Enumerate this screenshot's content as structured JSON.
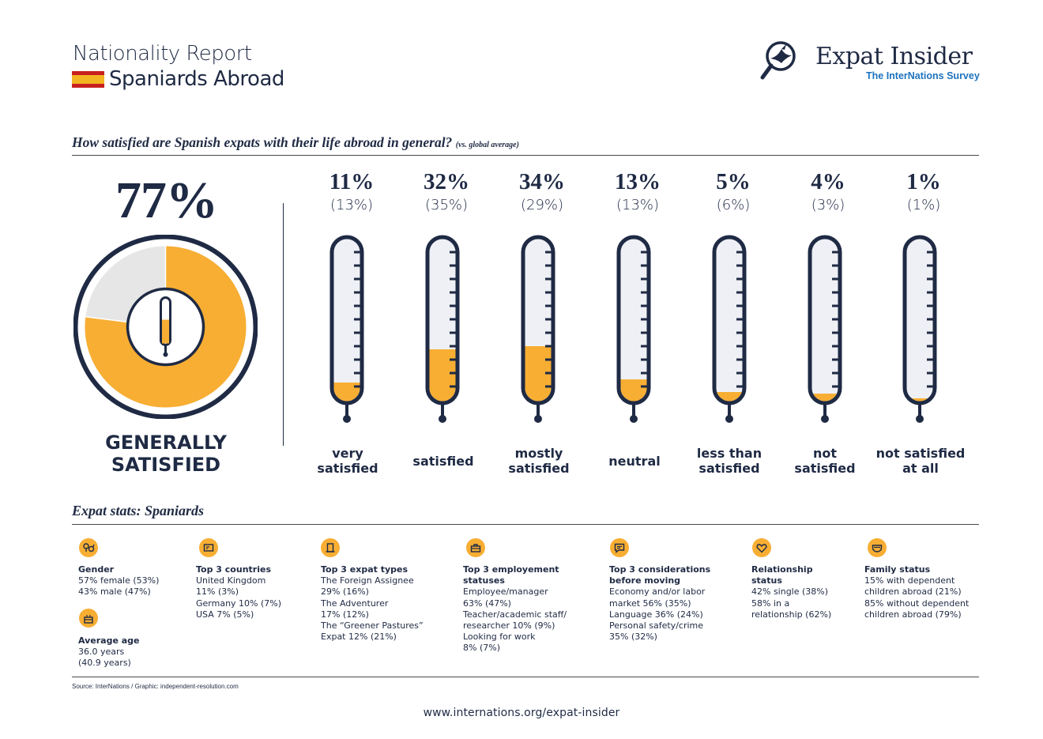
{
  "header": {
    "title": "Nationality Report",
    "subtitle": "Spaniards Abroad",
    "brand": {
      "name": "Expat Insider",
      "tagline": "The InterNations Survey"
    }
  },
  "colors": {
    "navy": "#1f2a44",
    "accent": "#f7ae33",
    "light": "#e6e6e6",
    "brand_blue": "#1e73be"
  },
  "question": {
    "text": "How satisfied are Spanish expats with their life abroad in general?",
    "note": "(vs. global average)"
  },
  "summary": {
    "value": "77%",
    "fraction": 0.77,
    "label_line1": "GENERALLY",
    "label_line2": "SATISFIED"
  },
  "chart_data": {
    "type": "bar",
    "categories": [
      "very satisfied",
      "satisfied",
      "mostly satisfied",
      "neutral",
      "less than satisfied",
      "not satisfied",
      "not satisfied at all"
    ],
    "series": [
      {
        "name": "Spaniards",
        "values": [
          11,
          32,
          34,
          13,
          5,
          4,
          1
        ]
      },
      {
        "name": "global average",
        "values": [
          13,
          35,
          29,
          13,
          6,
          3,
          1
        ]
      }
    ],
    "ylim": [
      0,
      100
    ]
  },
  "columns": [
    {
      "pct": "11%",
      "avg": "(13%)",
      "line1": "very",
      "line2": "satisfied"
    },
    {
      "pct": "32%",
      "avg": "(35%)",
      "line1": "satisfied",
      "line2": ""
    },
    {
      "pct": "34%",
      "avg": "(29%)",
      "line1": "mostly",
      "line2": "satisfied"
    },
    {
      "pct": "13%",
      "avg": "(13%)",
      "line1": "neutral",
      "line2": ""
    },
    {
      "pct": "5%",
      "avg": "(6%)",
      "line1": "less than",
      "line2": "satisfied"
    },
    {
      "pct": "4%",
      "avg": "(3%)",
      "line1": "not",
      "line2": "satisfied"
    },
    {
      "pct": "1%",
      "avg": "(1%)",
      "line1": "not satisfied",
      "line2": "at all"
    }
  ],
  "stats": {
    "title": "Expat stats: Spaniards",
    "gender": {
      "heading": "Gender",
      "lines": [
        "57% female (53%)",
        "43% male (47%)"
      ],
      "icon": "gender-icon"
    },
    "age": {
      "heading": "Average age",
      "lines": [
        "36.0 years",
        "(40.9 years)"
      ],
      "icon": "cake-icon"
    },
    "countries": {
      "heading": "Top 3 countries",
      "lines": [
        "United Kingdom",
        "11%  (3%)",
        "Germany 10% (7%)",
        "USA 7% (5%)"
      ],
      "icon": "map-icon"
    },
    "expat_types": {
      "heading": "Top 3 expat types",
      "lines": [
        "The Foreign Assignee",
        "29% (16%)",
        "The Adventurer",
        "17% (12%)",
        "The “Greener Pastures”",
        "Expat 12% (21%)"
      ],
      "icon": "door-icon"
    },
    "employment": {
      "heading_lines": [
        "Top 3 employement",
        "statuses"
      ],
      "lines": [
        "Employee/manager",
        "63% (47%)",
        "Teacher/academic staff/",
        "researcher 10% (9%)",
        "Looking for work",
        "8% (7%)"
      ],
      "icon": "briefcase-icon"
    },
    "considerations": {
      "heading_lines": [
        "Top 3 considerations",
        "before moving"
      ],
      "lines": [
        "Economy and/or labor",
        "market 56% (35%)",
        "Language 36% (24%)",
        "Personal safety/crime",
        "35% (32%)"
      ],
      "icon": "chat-icon"
    },
    "relationship": {
      "heading_lines": [
        "Relationship",
        "status"
      ],
      "lines": [
        "42% single (38%)",
        "58% in a",
        "relationship (62%)"
      ],
      "icon": "heart-icon"
    },
    "family": {
      "heading": "Family status",
      "lines": [
        "15% with dependent",
        "children abroad (21%)",
        "85% without dependent",
        "children abroad (79%)"
      ],
      "icon": "stroller-icon"
    }
  },
  "footer": {
    "source": "Source: InterNations / Graphic: independent-resolution.com",
    "url": "www.internations.org/expat-insider"
  }
}
